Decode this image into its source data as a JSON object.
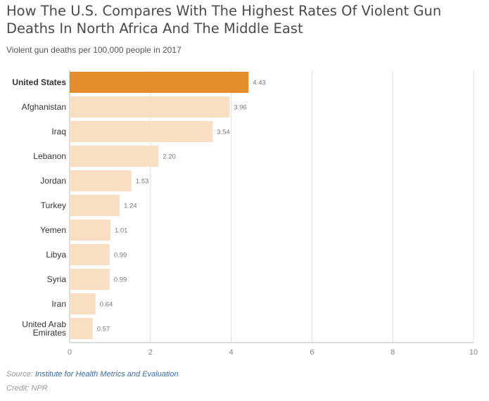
{
  "chart_data": {
    "type": "bar",
    "orientation": "horizontal",
    "title": "How The U.S. Compares With The Highest Rates Of Violent Gun Deaths In North Africa And The Middle East",
    "subtitle": "Violent gun deaths per 100,000 people in 2017",
    "categories": [
      "United States",
      "Afghanistan",
      "Iraq",
      "Lebanon",
      "Jordan",
      "Turkey",
      "Yemen",
      "Libya",
      "Syria",
      "Iran",
      "United Arab Emirates"
    ],
    "values": [
      4.43,
      3.96,
      3.54,
      2.2,
      1.53,
      1.24,
      1.01,
      0.99,
      0.99,
      0.64,
      0.57
    ],
    "value_labels": [
      "4.43",
      "3.96",
      "3.54",
      "2.20",
      "1.53",
      "1.24",
      "1.01",
      "0.99",
      "0.99",
      "0.64",
      "0.57"
    ],
    "highlight": "United States",
    "xlim": [
      0,
      10
    ],
    "xticks": [
      0,
      2,
      4,
      6,
      8,
      10
    ],
    "grid": true,
    "colors": {
      "highlight": "#e38d2c",
      "bar": "#f8dfc4",
      "grid": "#e2e2e2",
      "axis": "#bbbbbb"
    }
  },
  "footer": {
    "source_prefix": "Source: ",
    "source_link": "Institute for Health Metrics and Evaluation",
    "credit": "Credit: NPR"
  }
}
